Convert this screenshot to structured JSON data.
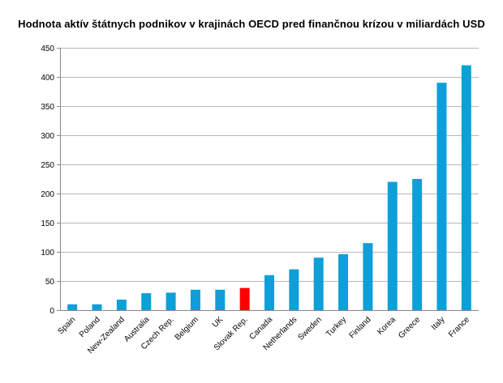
{
  "chart_data": {
    "type": "bar",
    "title": "Hodnota aktív štátnych podnikov v krajinách OECD pred finančnou krízou v miliardách USD",
    "xlabel": "",
    "ylabel": "",
    "ylim": [
      0,
      450
    ],
    "yticks": [
      "0",
      "50",
      "100",
      "150",
      "200",
      "250",
      "300",
      "350",
      "400",
      "450"
    ],
    "grid": true,
    "legend": "none",
    "categories": [
      "Spain",
      "Poland",
      "New-Zealand",
      "Australia",
      "Czech Rep.",
      "Belgium",
      "UK",
      "Slovak Rep.",
      "Canada",
      "Netherlands",
      "Sweden",
      "Turkey",
      "Finland",
      "Korea",
      "Greece",
      "Italy",
      "France"
    ],
    "values": [
      10,
      10,
      18,
      29,
      30,
      35,
      35,
      38,
      60,
      70,
      90,
      96,
      115,
      220,
      225,
      390,
      420
    ],
    "colors": {
      "bar": "#0e9fd8",
      "highlight": "#ff0000",
      "grid": "#b8b8b8",
      "axis": "#888888"
    },
    "highlight_category": "Slovak Rep."
  }
}
